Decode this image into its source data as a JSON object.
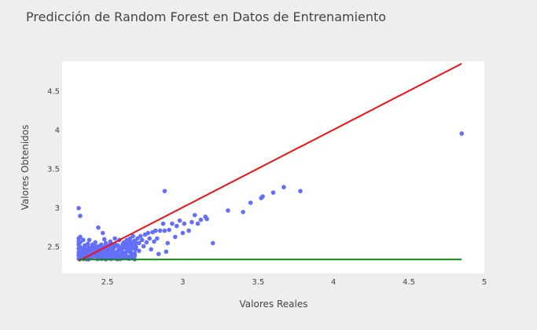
{
  "chart_data": {
    "type": "scatter",
    "title": "Predicción de Random Forest en Datos de Entrenamiento",
    "xlabel": "Valores Reales",
    "ylabel": "Valores Obtenidos",
    "xlim": [
      2.2,
      5.0
    ],
    "ylim": [
      2.15,
      4.88
    ],
    "x_ticks": [
      "2.5",
      "3",
      "3.5",
      "4",
      "4.5",
      "5"
    ],
    "y_ticks": [
      "2.5",
      "3",
      "3.5",
      "4",
      "4.5"
    ],
    "grid": false,
    "colors": {
      "points": "#636efa",
      "identity_line": "#ee1111",
      "baseline": "#118811",
      "plot_bg": "#ffffff",
      "page_bg": "#eeeeee"
    },
    "lines": [
      {
        "x": [
          2.31,
          4.85
        ],
        "y": [
          2.31,
          4.85
        ],
        "color": "#ee1111"
      },
      {
        "x": [
          2.31,
          4.85
        ],
        "y": [
          2.33,
          2.33
        ],
        "color": "#118811"
      }
    ],
    "points": [
      [
        2.31,
        2.99
      ],
      [
        2.32,
        2.89
      ],
      [
        2.31,
        2.6
      ],
      [
        2.31,
        2.56
      ],
      [
        2.31,
        2.52
      ],
      [
        2.31,
        2.47
      ],
      [
        2.31,
        2.42
      ],
      [
        2.31,
        2.38
      ],
      [
        2.31,
        2.34
      ],
      [
        2.32,
        2.62
      ],
      [
        2.32,
        2.55
      ],
      [
        2.32,
        2.49
      ],
      [
        2.33,
        2.44
      ],
      [
        2.33,
        2.39
      ],
      [
        2.34,
        2.35
      ],
      [
        2.34,
        2.58
      ],
      [
        2.35,
        2.51
      ],
      [
        2.35,
        2.46
      ],
      [
        2.36,
        2.41
      ],
      [
        2.37,
        2.53
      ],
      [
        2.37,
        2.37
      ],
      [
        2.38,
        2.48
      ],
      [
        2.38,
        2.58
      ],
      [
        2.39,
        2.43
      ],
      [
        2.4,
        2.52
      ],
      [
        2.4,
        2.36
      ],
      [
        2.41,
        2.46
      ],
      [
        2.42,
        2.41
      ],
      [
        2.42,
        2.55
      ],
      [
        2.43,
        2.49
      ],
      [
        2.44,
        2.74
      ],
      [
        2.44,
        2.44
      ],
      [
        2.45,
        2.38
      ],
      [
        2.46,
        2.52
      ],
      [
        2.47,
        2.67
      ],
      [
        2.47,
        2.46
      ],
      [
        2.48,
        2.59
      ],
      [
        2.48,
        2.41
      ],
      [
        2.49,
        2.54
      ],
      [
        2.5,
        2.48
      ],
      [
        2.5,
        2.37
      ],
      [
        2.51,
        2.44
      ],
      [
        2.52,
        2.56
      ],
      [
        2.52,
        2.51
      ],
      [
        2.53,
        2.4
      ],
      [
        2.54,
        2.47
      ],
      [
        2.55,
        2.6
      ],
      [
        2.55,
        2.53
      ],
      [
        2.56,
        2.36
      ],
      [
        2.57,
        2.44
      ],
      [
        2.57,
        2.51
      ],
      [
        2.58,
        2.58
      ],
      [
        2.59,
        2.48
      ],
      [
        2.6,
        2.42
      ],
      [
        2.61,
        2.55
      ],
      [
        2.61,
        2.49
      ],
      [
        2.62,
        2.37
      ],
      [
        2.63,
        2.58
      ],
      [
        2.64,
        2.52
      ],
      [
        2.64,
        2.45
      ],
      [
        2.65,
        2.6
      ],
      [
        2.66,
        2.54
      ],
      [
        2.67,
        2.4
      ],
      [
        2.67,
        2.63
      ],
      [
        2.68,
        2.57
      ],
      [
        2.69,
        2.49
      ],
      [
        2.7,
        2.6
      ],
      [
        2.71,
        2.54
      ],
      [
        2.71,
        2.44
      ],
      [
        2.72,
        2.63
      ],
      [
        2.73,
        2.58
      ],
      [
        2.74,
        2.5
      ],
      [
        2.75,
        2.65
      ],
      [
        2.76,
        2.55
      ],
      [
        2.77,
        2.67
      ],
      [
        2.78,
        2.6
      ],
      [
        2.79,
        2.46
      ],
      [
        2.8,
        2.68
      ],
      [
        2.81,
        2.56
      ],
      [
        2.82,
        2.7
      ],
      [
        2.83,
        2.6
      ],
      [
        2.84,
        2.4
      ],
      [
        2.85,
        2.7
      ],
      [
        2.87,
        2.79
      ],
      [
        2.88,
        2.7
      ],
      [
        2.88,
        3.21
      ],
      [
        2.89,
        2.43
      ],
      [
        2.9,
        2.54
      ],
      [
        2.91,
        2.71
      ],
      [
        2.93,
        2.79
      ],
      [
        2.95,
        2.62
      ],
      [
        2.96,
        2.76
      ],
      [
        2.98,
        2.83
      ],
      [
        3.0,
        2.67
      ],
      [
        3.01,
        2.79
      ],
      [
        3.04,
        2.7
      ],
      [
        3.06,
        2.81
      ],
      [
        3.08,
        2.9
      ],
      [
        3.1,
        2.79
      ],
      [
        3.12,
        2.84
      ],
      [
        3.15,
        2.88
      ],
      [
        3.16,
        2.85
      ],
      [
        3.2,
        2.54
      ],
      [
        3.3,
        2.96
      ],
      [
        3.4,
        2.94
      ],
      [
        3.45,
        3.06
      ],
      [
        3.52,
        3.12
      ],
      [
        3.53,
        3.14
      ],
      [
        3.6,
        3.19
      ],
      [
        3.67,
        3.26
      ],
      [
        3.78,
        3.21
      ],
      [
        4.85,
        3.95
      ]
    ],
    "band": {
      "x_start": 2.31,
      "x_end": 2.7,
      "y_min": 2.33,
      "y_max": 2.58
    }
  }
}
